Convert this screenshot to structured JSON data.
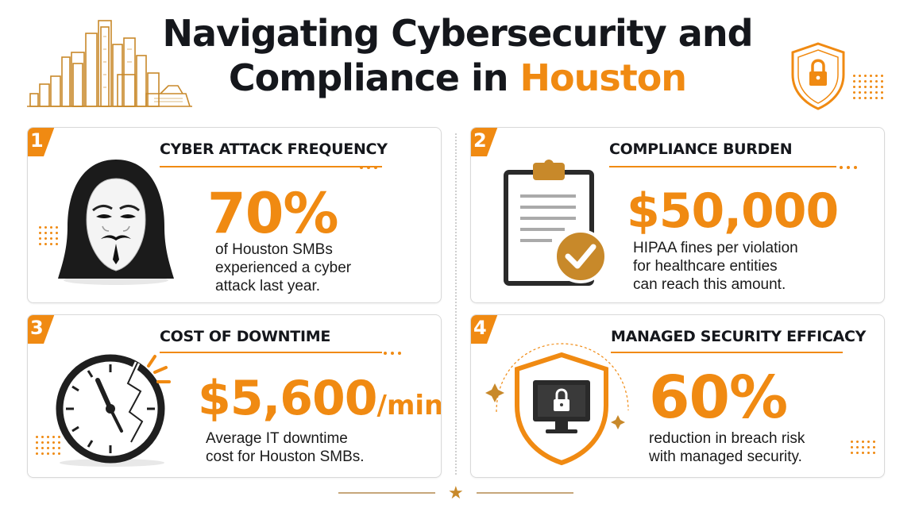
{
  "title": {
    "line1": "Navigating Cybersecurity and",
    "line2_prefix": "Compliance in ",
    "line2_accent": "Houston"
  },
  "colors": {
    "accent": "#f08a12",
    "dark": "#15171c",
    "gold": "#c8892a"
  },
  "cards": [
    {
      "number": "1",
      "heading": "CYBER ATTACK FREQUENCY",
      "value": "70%",
      "desc": [
        "of Houston SMBs",
        "experienced a cyber",
        "attack last year."
      ],
      "icon": "hacker-mask-icon"
    },
    {
      "number": "2",
      "heading": "COMPLIANCE BURDEN",
      "value": "$50,000",
      "desc": [
        "HIPAA fines per violation",
        "for healthcare entities",
        "can reach this amount."
      ],
      "icon": "clipboard-check-icon"
    },
    {
      "number": "3",
      "heading": "COST OF DOWNTIME",
      "value": "$5,600",
      "unit": "/min",
      "desc": [
        "Average IT downtime",
        "cost for Houston SMBs."
      ],
      "icon": "broken-clock-icon"
    },
    {
      "number": "4",
      "heading": "MANAGED SECURITY EFFICACY",
      "value": "60%",
      "desc": [
        "reduction in breach risk",
        "with managed security."
      ],
      "icon": "shield-monitor-lock-icon"
    }
  ]
}
